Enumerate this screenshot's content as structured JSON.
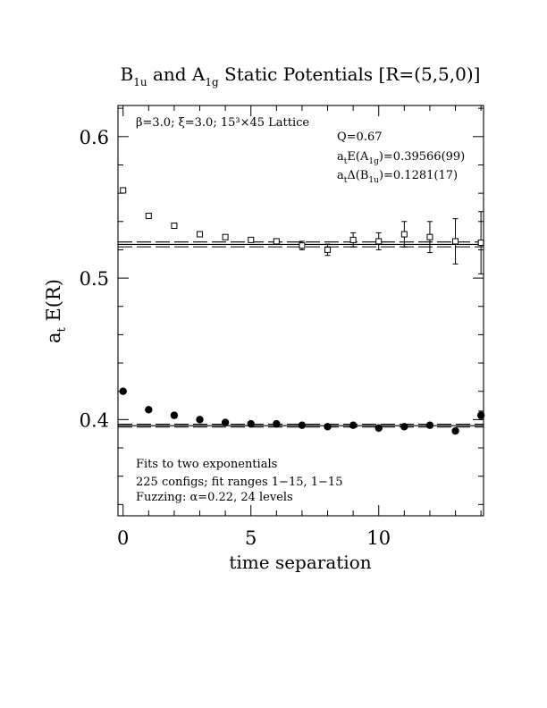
{
  "chart_data": {
    "type": "scatter",
    "title": {
      "main": "B",
      "sub1": "1u",
      "mid": " and A",
      "sub2": "1g",
      "tail": " Static Potentials [R=(5,5,0)]"
    },
    "xlabel": "time separation",
    "ylabel": {
      "main": "a",
      "sub": "t",
      "tail": " E(R)"
    },
    "xlim": [
      -0.2,
      14.1
    ],
    "ylim": [
      0.332,
      0.622
    ],
    "x_ticks": [
      0,
      5,
      10
    ],
    "y_ticks": [
      0.4,
      0.5,
      0.6
    ],
    "x_tick_labels": [
      "0",
      "5",
      "10"
    ],
    "y_tick_labels": [
      "0.4",
      "0.5",
      "0.6"
    ],
    "annotations": {
      "lattice": "β=3.0; ξ=3.0; 15³×45 Lattice",
      "q": "Q=0.67",
      "energy": {
        "a": "a",
        "t": "t",
        "mid": "E(A",
        "sub": "1g",
        "val": ")=0.39566(99)"
      },
      "gap": {
        "a": "a",
        "t": "t",
        "mid": "Δ(B",
        "sub": "1u",
        "val": ")=0.1281(17)"
      },
      "fit1": "Fits to two exponentials",
      "fit2": "225 configs; fit ranges 1−15, 1−15",
      "fit3": "Fuzzing: α=0.22, 24 levels"
    },
    "series": [
      {
        "marker": "open-square",
        "x": [
          0,
          1,
          2,
          3,
          4,
          5,
          6,
          7,
          8,
          9,
          10,
          11,
          12,
          13,
          14
        ],
        "y": [
          0.562,
          0.544,
          0.537,
          0.531,
          0.529,
          0.527,
          0.526,
          0.523,
          0.52,
          0.527,
          0.526,
          0.531,
          0.529,
          0.526,
          0.525
        ],
        "err": [
          0.001,
          0.001,
          0.0012,
          0.0015,
          0.0015,
          0.002,
          0.0025,
          0.003,
          0.004,
          0.005,
          0.006,
          0.009,
          0.011,
          0.016,
          0.022
        ]
      },
      {
        "marker": "filled-circle",
        "x": [
          0,
          1,
          2,
          3,
          4,
          5,
          6,
          7,
          8,
          9,
          10,
          11,
          12,
          13,
          14
        ],
        "y": [
          0.42,
          0.407,
          0.403,
          0.4,
          0.398,
          0.397,
          0.397,
          0.396,
          0.395,
          0.396,
          0.394,
          0.395,
          0.396,
          0.392,
          0.403
        ],
        "err": [
          0.001,
          0.001,
          0.001,
          0.001,
          0.001,
          0.001,
          0.001,
          0.001,
          0.001,
          0.001,
          0.001,
          0.001,
          0.001,
          0.001,
          0.003
        ]
      }
    ],
    "fit_bands": [
      {
        "center": 0.5238,
        "half_width": 0.0017,
        "x_range": [
          -0.2,
          14.1
        ]
      },
      {
        "center": 0.3957,
        "half_width": 0.001,
        "x_range": [
          -0.2,
          14.1
        ]
      }
    ]
  }
}
